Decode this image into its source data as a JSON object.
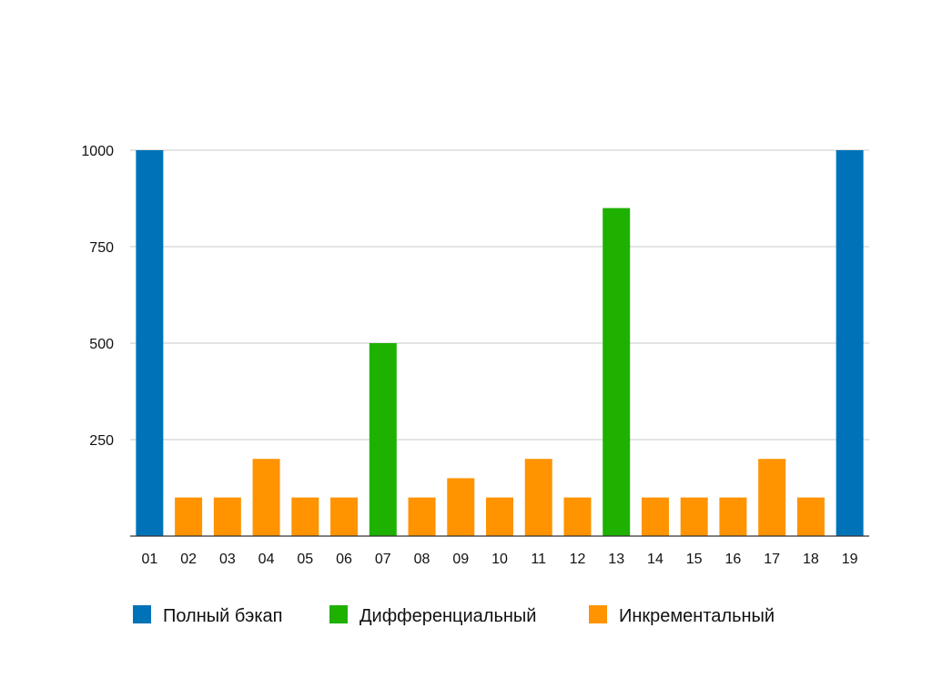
{
  "chart_data": {
    "type": "bar",
    "categories": [
      "01",
      "02",
      "03",
      "04",
      "05",
      "06",
      "07",
      "08",
      "09",
      "10",
      "11",
      "12",
      "13",
      "14",
      "15",
      "16",
      "17",
      "18",
      "19"
    ],
    "values": [
      1000,
      100,
      100,
      200,
      100,
      100,
      500,
      100,
      150,
      100,
      200,
      100,
      850,
      100,
      100,
      100,
      200,
      100,
      1000
    ],
    "bar_series": [
      "full",
      "inc",
      "inc",
      "inc",
      "inc",
      "inc",
      "diff",
      "inc",
      "inc",
      "inc",
      "inc",
      "inc",
      "diff",
      "inc",
      "inc",
      "inc",
      "inc",
      "inc",
      "full"
    ],
    "series": [
      {
        "key": "full",
        "name": "Полный бэкап",
        "color": "#0073b8"
      },
      {
        "key": "diff",
        "name": "Дифференциальный",
        "color": "#1eb100"
      },
      {
        "key": "inc",
        "name": "Инкрементальный",
        "color": "#ff9300"
      }
    ],
    "yticks": [
      250,
      500,
      750,
      1000
    ],
    "ylim": [
      0,
      1000
    ],
    "grid": true,
    "legend_position": "bottom",
    "title": "",
    "xlabel": "",
    "ylabel": ""
  }
}
